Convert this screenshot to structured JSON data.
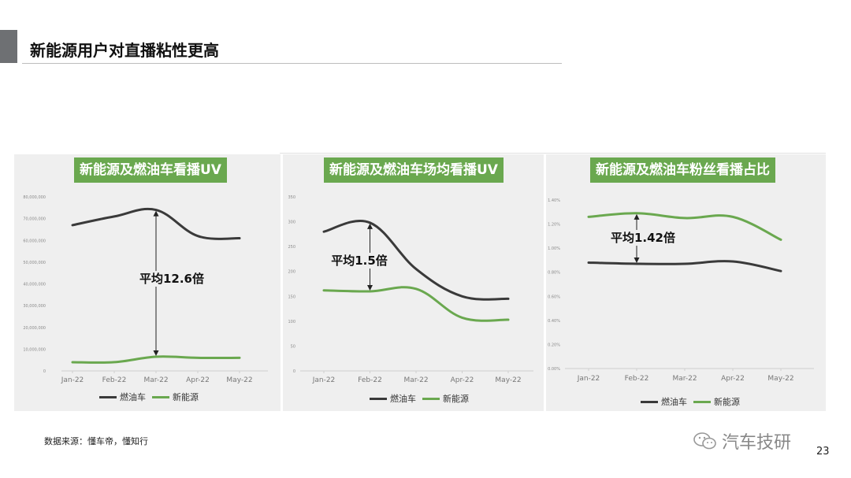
{
  "page": {
    "title": "新能源用户对直播粘性更高",
    "source": "数据来源：懂车帝，懂知行",
    "watermark": "汽车技研",
    "page_number": "23"
  },
  "colors": {
    "fuel": "#3a3a3a",
    "nev": "#6aa84f",
    "accent_green": "#6aa84f"
  },
  "legend": {
    "fuel": "燃油车",
    "nev": "新能源"
  },
  "chart_data": [
    {
      "type": "line",
      "title": "新能源及燃油车看播UV",
      "categories": [
        "Jan-22",
        "Feb-22",
        "Mar-22",
        "Apr-22",
        "May-22"
      ],
      "yticks": [
        "0",
        "10,000,000",
        "20,000,000",
        "30,000,000",
        "40,000,000",
        "50,000,000",
        "60,000,000",
        "70,000,000",
        "80,000,000"
      ],
      "ylim": [
        0,
        80000000
      ],
      "series": [
        {
          "name": "燃油车",
          "key": "fuel",
          "values": [
            67000000,
            71000000,
            74000000,
            62000000,
            61000000
          ]
        },
        {
          "name": "新能源",
          "key": "nev",
          "values": [
            4000000,
            4000000,
            6500000,
            6000000,
            6000000
          ]
        }
      ],
      "annotation": {
        "text": "平均12.6倍",
        "category_index": 2
      }
    },
    {
      "type": "line",
      "title": "新能源及燃油车场均看播UV",
      "categories": [
        "Jan-22",
        "Feb-22",
        "Mar-22",
        "Apr-22",
        "May-22"
      ],
      "yticks": [
        "0",
        "50",
        "100",
        "150",
        "200",
        "250",
        "300",
        "350"
      ],
      "ylim": [
        0,
        350
      ],
      "series": [
        {
          "name": "燃油车",
          "key": "fuel",
          "values": [
            280,
            298,
            205,
            150,
            145
          ]
        },
        {
          "name": "新能源",
          "key": "nev",
          "values": [
            162,
            160,
            165,
            107,
            103
          ]
        }
      ],
      "annotation": {
        "text": "平均1.5倍",
        "category_index": 1
      }
    },
    {
      "type": "line",
      "title": "新能源及燃油车粉丝看播占比",
      "categories": [
        "Jan-22",
        "Feb-22",
        "Mar-22",
        "Apr-22",
        "May-22"
      ],
      "yticks": [
        "0.00%",
        "0.20%",
        "0.40%",
        "0.60%",
        "0.80%",
        "1.00%",
        "1.20%",
        "1.40%"
      ],
      "ylim": [
        0,
        1.4
      ],
      "series": [
        {
          "name": "燃油车",
          "key": "fuel",
          "values": [
            0.88,
            0.87,
            0.87,
            0.89,
            0.81
          ]
        },
        {
          "name": "新能源",
          "key": "nev",
          "values": [
            1.26,
            1.29,
            1.25,
            1.26,
            1.07
          ]
        }
      ],
      "annotation": {
        "text": "平均1.42倍",
        "category_index": 1
      }
    }
  ]
}
